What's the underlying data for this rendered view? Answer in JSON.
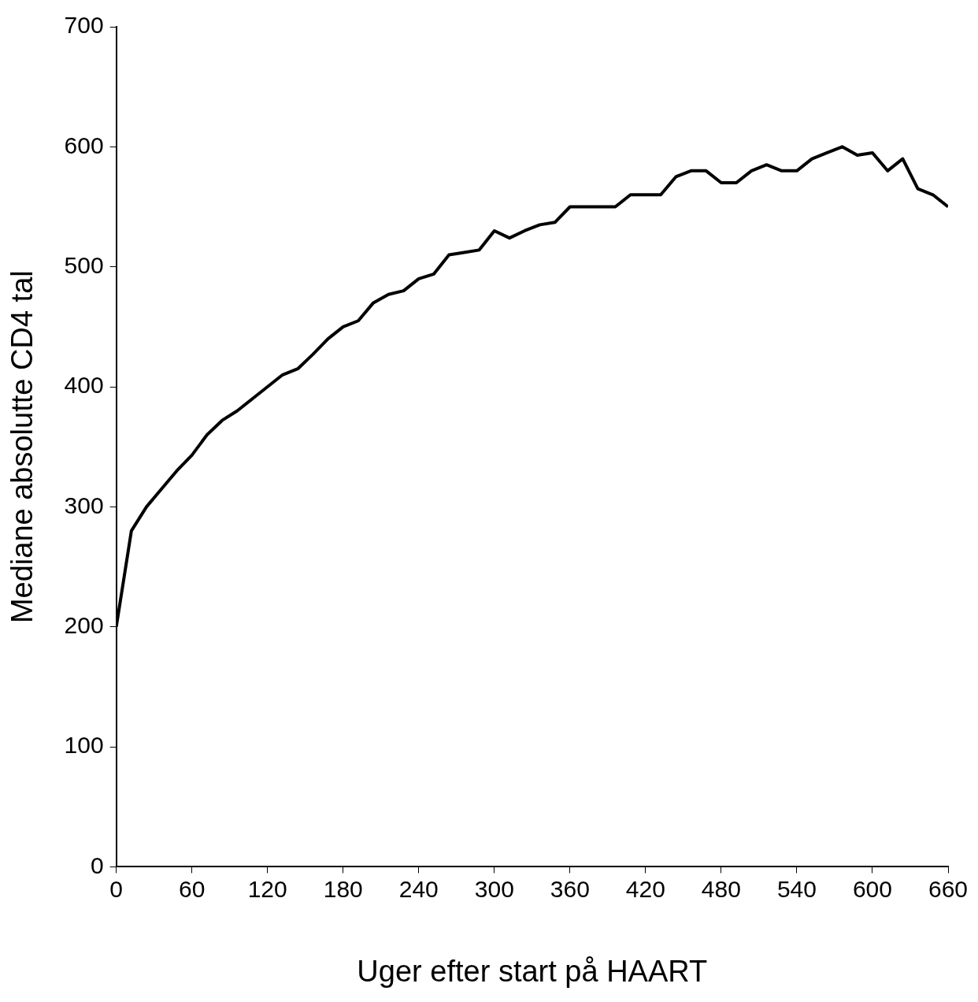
{
  "chart_data": {
    "type": "line",
    "xlabel": "Uger efter start på HAART",
    "ylabel": "Mediane absolutte CD4 tal",
    "x": [
      0,
      12,
      24,
      36,
      48,
      60,
      72,
      84,
      96,
      108,
      120,
      132,
      144,
      156,
      168,
      180,
      192,
      204,
      216,
      228,
      240,
      252,
      264,
      276,
      288,
      300,
      312,
      324,
      336,
      348,
      360,
      372,
      384,
      396,
      408,
      420,
      432,
      444,
      456,
      468,
      480,
      492,
      504,
      516,
      528,
      540,
      552,
      564,
      576,
      588,
      600,
      612,
      624,
      636,
      648,
      660
    ],
    "series": [
      {
        "color": "#000000",
        "values": [
          200,
          280,
          300,
          315,
          330,
          343,
          360,
          372,
          380,
          390,
          400,
          410,
          415,
          427,
          440,
          450,
          455,
          470,
          477,
          480,
          490,
          494,
          510,
          512,
          514,
          530,
          524,
          530,
          535,
          537,
          550,
          550,
          550,
          550,
          560,
          560,
          560,
          575,
          580,
          580,
          570,
          570,
          580,
          585,
          580,
          580,
          590,
          595,
          600,
          593,
          595,
          580,
          590,
          565,
          560,
          550
        ]
      }
    ],
    "xlim": [
      0,
      660
    ],
    "xticks": [
      0,
      60,
      120,
      180,
      240,
      300,
      360,
      420,
      480,
      540,
      600,
      660
    ],
    "ylim": [
      0,
      700
    ],
    "yticks": [
      0,
      100,
      200,
      300,
      400,
      500,
      600,
      700
    ],
    "grid": false,
    "legend": false,
    "marker": "none",
    "line_style": "solid"
  }
}
